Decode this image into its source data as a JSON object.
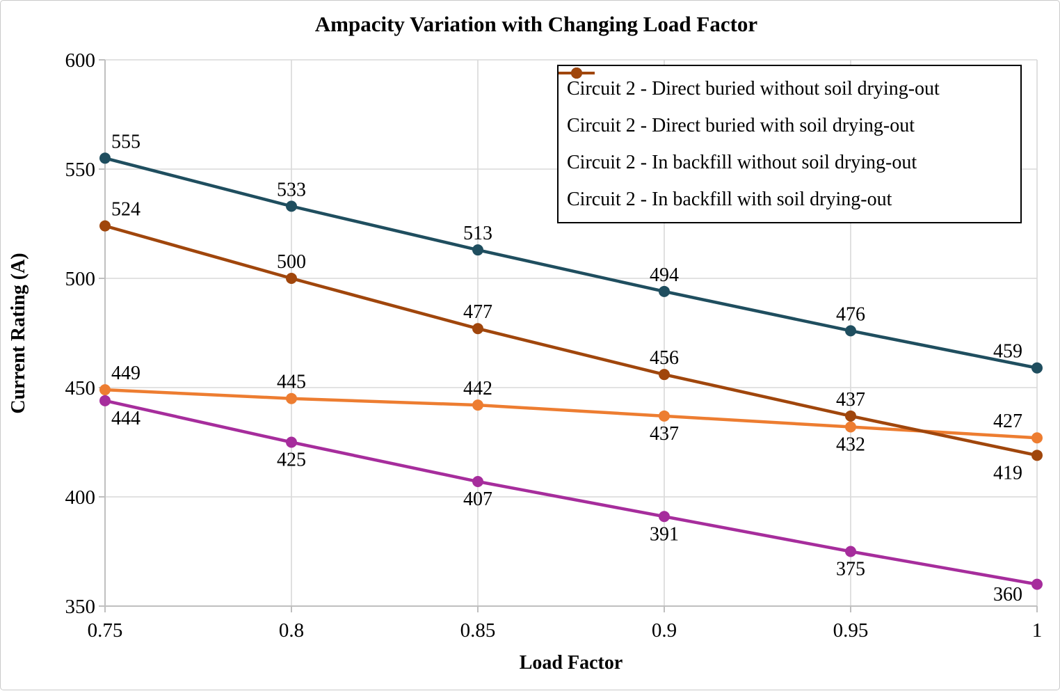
{
  "chart_data": {
    "type": "line",
    "title": "Ampacity Variation with Changing Load Factor",
    "xlabel": "Load Factor",
    "ylabel": "Current Rating (A)",
    "x": [
      0.75,
      0.8,
      0.85,
      0.9,
      0.95,
      1
    ],
    "x_tick_labels": [
      "0.75",
      "0.8",
      "0.85",
      "0.9",
      "0.95",
      "1"
    ],
    "y_ticks": [
      350,
      400,
      450,
      500,
      550,
      600
    ],
    "y_tick_labels": [
      "350",
      "400",
      "450",
      "500",
      "550",
      "600"
    ],
    "ylim": [
      350,
      600
    ],
    "grid": true,
    "legend_position": "top-right",
    "data_labels_shown": true,
    "series": [
      {
        "name": "Circuit 2 - Direct buried without soil drying-out",
        "color": "#ED7D31",
        "values": [
          449,
          445,
          442,
          437,
          432,
          427
        ],
        "label_placement": [
          "above",
          "above",
          "above",
          "below",
          "below",
          "above"
        ]
      },
      {
        "name": "Circuit 2 - Direct buried with soil drying-out",
        "color": "#A62D9C",
        "values": [
          444,
          425,
          407,
          391,
          375,
          360
        ],
        "label_placement": [
          "below",
          "below",
          "below",
          "below",
          "below",
          "below"
        ]
      },
      {
        "name": "Circuit 2 - In backfill without soil drying-out",
        "color": "#1F4E5F",
        "values": [
          555,
          533,
          513,
          494,
          476,
          459
        ],
        "label_placement": [
          "above",
          "above",
          "above",
          "above",
          "above",
          "above"
        ]
      },
      {
        "name": "Circuit 2 - In backfill with soil drying-out",
        "color": "#A0460C",
        "values": [
          524,
          500,
          477,
          456,
          437,
          419
        ],
        "label_placement": [
          "above",
          "above",
          "above",
          "above",
          "above",
          "below"
        ]
      }
    ],
    "style_colors": {
      "gridline": "#D9D9D9",
      "axis_line": "#BFBFBF",
      "background": "#FFFFFF",
      "text": "#000000"
    }
  }
}
